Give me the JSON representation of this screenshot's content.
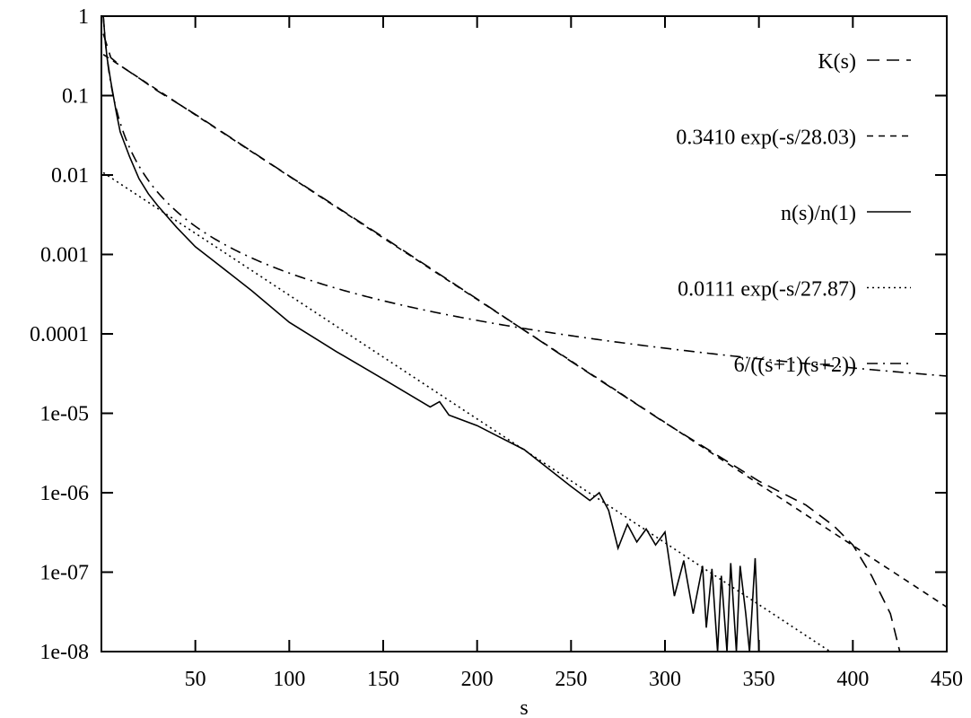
{
  "chart_data": {
    "type": "line",
    "title": "",
    "xlabel": "s",
    "ylabel": "",
    "xlim": [
      0,
      450
    ],
    "ylim": [
      1e-08,
      1
    ],
    "yscale": "log",
    "x_ticks": [
      50,
      100,
      150,
      200,
      250,
      300,
      350,
      400,
      450
    ],
    "x_tick_labels": [
      "50",
      "100",
      "150",
      "200",
      "250",
      "300",
      "350",
      "400",
      "450"
    ],
    "y_ticks": [
      1,
      0.1,
      0.01,
      0.001,
      0.0001,
      1e-05,
      1e-06,
      1e-07,
      1e-08
    ],
    "y_tick_labels": [
      "1",
      "0.1",
      "0.01",
      "0.001",
      "0.0001",
      "1e-05",
      "1e-06",
      "1e-07",
      "1e-08"
    ],
    "grid": false,
    "legend_position": "top-right",
    "series": [
      {
        "name": "K(s)",
        "style": "long-dash",
        "x": [
          1,
          5,
          10,
          20,
          30,
          50,
          75,
          100,
          150,
          200,
          250,
          300,
          350,
          375,
          390,
          400,
          410,
          420,
          425
        ],
        "y": [
          0.6,
          0.3,
          0.239,
          0.166,
          0.114,
          0.058,
          0.0237,
          0.0097,
          0.00165,
          0.000275,
          4.5e-05,
          7.6e-06,
          1.4e-06,
          7e-07,
          3.8e-07,
          2.2e-07,
          9e-08,
          3e-08,
          1e-08
        ]
      },
      {
        "name": "0.3410 exp(-s/28.03)",
        "style": "short-dash",
        "function": "exp",
        "amplitude": 0.341,
        "decay": 28.03,
        "x_range": [
          1,
          450
        ]
      },
      {
        "name": "n(s)/n(1)",
        "style": "solid",
        "x": [
          1,
          2,
          3,
          5,
          8,
          10,
          15,
          20,
          25,
          30,
          40,
          50,
          60,
          80,
          100,
          125,
          150,
          175,
          180,
          185,
          200,
          210,
          225,
          250,
          260,
          265,
          270,
          275,
          280,
          285,
          290,
          295,
          300,
          305,
          310,
          315,
          320,
          322,
          325,
          328,
          330,
          333,
          335,
          338,
          340,
          343,
          345,
          348,
          350
        ],
        "y": [
          1,
          0.5,
          0.3,
          0.15,
          0.06,
          0.035,
          0.017,
          0.009,
          0.0058,
          0.0041,
          0.0022,
          0.00125,
          0.00082,
          0.00035,
          0.00014,
          6e-05,
          2.7e-05,
          1.2e-05,
          1.4e-05,
          9.5e-06,
          7e-06,
          5.3e-06,
          3.5e-06,
          1.2e-06,
          8e-07,
          1e-06,
          6e-07,
          2e-07,
          4e-07,
          2.4e-07,
          3.5e-07,
          2.2e-07,
          3.2e-07,
          5e-08,
          1.4e-07,
          3e-08,
          1.2e-07,
          2e-08,
          1.1e-07,
          1e-08,
          9e-08,
          1e-08,
          1.3e-07,
          1e-08,
          1.2e-07,
          3e-08,
          1e-08,
          1.5e-07,
          1e-08
        ]
      },
      {
        "name": "0.0111 exp(-s/27.87)",
        "style": "dotted",
        "function": "exp",
        "amplitude": 0.0111,
        "decay": 27.87,
        "x_range": [
          1,
          389
        ]
      },
      {
        "name": "6/((s+1)(s+2))",
        "style": "dash-dot",
        "function": "rational",
        "numerator": 6,
        "x_range": [
          1,
          450
        ]
      }
    ]
  }
}
